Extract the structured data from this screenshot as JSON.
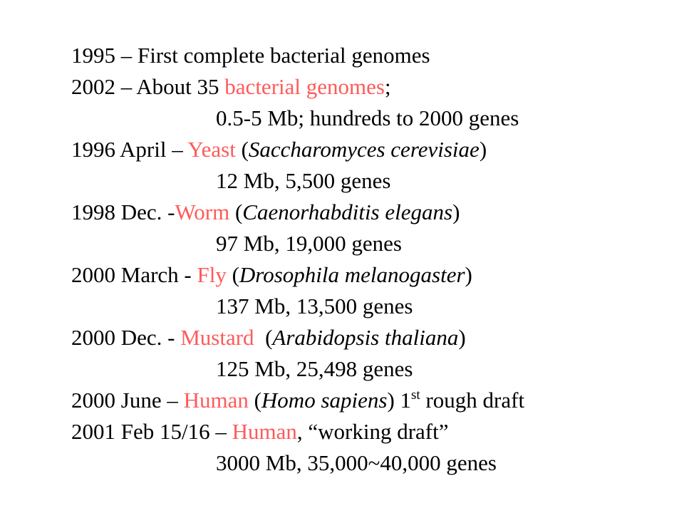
{
  "colors": {
    "text": "#000000",
    "highlight": "#ff5a5a",
    "background": "#ffffff"
  },
  "lines": [
    {
      "text": "1995 – First complete bacterial genomes"
    },
    {
      "prefix": "2002 – About 35 ",
      "highlight": "bacterial genomes",
      "suffix": ";"
    },
    {
      "text": "0.5-5 Mb; hundreds to 2000 genes"
    },
    {
      "prefix": "1996 April – ",
      "highlight": "Yeast",
      "mid": " (",
      "species": "Saccharomyces cerevisiae",
      "suffix": ")"
    },
    {
      "text": "12 Mb, 5,500 genes"
    },
    {
      "prefix": "1998 Dec. -",
      "highlight": "Worm",
      "mid": " (",
      "species": "Caenorhabditis elegans",
      "suffix": ")"
    },
    {
      "text": "97 Mb, 19,000 genes"
    },
    {
      "prefix": "2000 March - ",
      "highlight": "Fly",
      "mid": " (",
      "species": "Drosophila melanogaster",
      "suffix": ")"
    },
    {
      "text": "137 Mb, 13,500 genes"
    },
    {
      "prefix": "2000 Dec. - ",
      "highlight": "Mustard",
      "mid": "  (",
      "species": "Arabidopsis thaliana",
      "suffix": ")"
    },
    {
      "text": "125 Mb, 25,498 genes"
    },
    {
      "prefix": "2000 June – ",
      "highlight": "Human",
      "mid": " (",
      "species": "Homo sapiens",
      "suffix_a": ") 1",
      "sup": "st",
      "suffix_b": " rough draft"
    },
    {
      "prefix": "2001 Feb 15/16 – ",
      "highlight": "Human",
      "suffix": ", “working draft”"
    },
    {
      "text": "3000 Mb, 35,000~40,000 genes"
    }
  ]
}
